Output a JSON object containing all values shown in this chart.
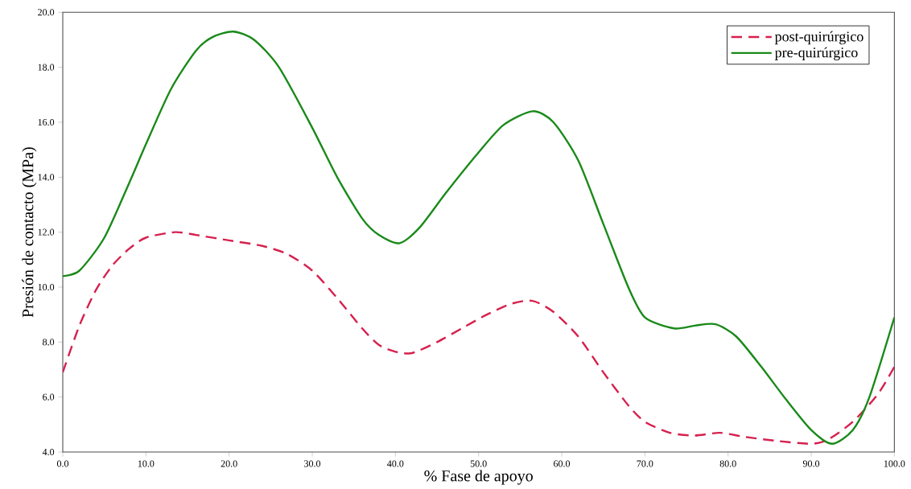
{
  "chart_data": {
    "type": "line",
    "xlabel": "% Fase de apoyo",
    "ylabel": "Presión de contacto (MPa)",
    "xlim": [
      0,
      100
    ],
    "ylim": [
      4,
      20
    ],
    "xticks": [
      {
        "value": 0,
        "label": "0.0"
      },
      {
        "value": 10,
        "label": "10.0"
      },
      {
        "value": 20,
        "label": "20.0"
      },
      {
        "value": 30,
        "label": "30.0"
      },
      {
        "value": 40,
        "label": "40.0"
      },
      {
        "value": 50,
        "label": "50.0"
      },
      {
        "value": 60,
        "label": "60.0"
      },
      {
        "value": 70,
        "label": "70.0"
      },
      {
        "value": 80,
        "label": "80.0"
      },
      {
        "value": 90,
        "label": "90.0"
      },
      {
        "value": 100,
        "label": "100.0"
      }
    ],
    "yticks": [
      {
        "value": 4,
        "label": "4.0"
      },
      {
        "value": 6,
        "label": "6.0"
      },
      {
        "value": 8,
        "label": "8.0"
      },
      {
        "value": 10,
        "label": "10.0"
      },
      {
        "value": 12,
        "label": "12.0"
      },
      {
        "value": 14,
        "label": "14.0"
      },
      {
        "value": 16,
        "label": "16.0"
      },
      {
        "value": 18,
        "label": "18.0"
      },
      {
        "value": 20,
        "label": "20.0"
      }
    ],
    "legend": "top right",
    "series": [
      {
        "name": "post-quirúrgico",
        "color": "#d6204e",
        "line_style": "dashed",
        "x": [
          0,
          2,
          4,
          6,
          8,
          10,
          13.5,
          16,
          20,
          24,
          27,
          30,
          33,
          36,
          38,
          40,
          42,
          45,
          48,
          51,
          54,
          56.5,
          59,
          62,
          65,
          68,
          70,
          73,
          76,
          79,
          82,
          86,
          90,
          92,
          95,
          98,
          100
        ],
        "values": [
          6.9,
          8.6,
          9.9,
          10.8,
          11.4,
          11.8,
          12.0,
          11.9,
          11.7,
          11.5,
          11.2,
          10.6,
          9.6,
          8.5,
          7.9,
          7.65,
          7.6,
          8.0,
          8.5,
          9.0,
          9.4,
          9.5,
          9.1,
          8.2,
          6.9,
          5.7,
          5.1,
          4.7,
          4.6,
          4.7,
          4.55,
          4.4,
          4.3,
          4.45,
          5.1,
          6.1,
          7.1
        ]
      },
      {
        "name": "pre-quirúrgico",
        "color": "#1a8a1a",
        "line_style": "solid",
        "x": [
          0,
          2,
          5,
          8,
          10,
          13,
          16,
          18,
          20.5,
          23,
          26,
          30,
          33,
          36,
          38,
          40.5,
          43,
          46,
          50,
          53,
          56.5,
          59,
          62,
          65,
          68,
          70,
          73.5,
          76,
          78.5,
          81,
          84,
          87,
          90,
          92.5,
          95,
          97,
          100
        ],
        "values": [
          10.4,
          10.6,
          11.8,
          13.8,
          15.2,
          17.2,
          18.6,
          19.1,
          19.3,
          19.0,
          18.0,
          15.8,
          14.0,
          12.5,
          11.9,
          11.6,
          12.2,
          13.4,
          14.9,
          15.9,
          16.4,
          16.0,
          14.6,
          12.3,
          10.0,
          8.9,
          8.5,
          8.6,
          8.65,
          8.2,
          7.1,
          5.9,
          4.8,
          4.3,
          4.8,
          6.0,
          8.9
        ]
      }
    ]
  }
}
